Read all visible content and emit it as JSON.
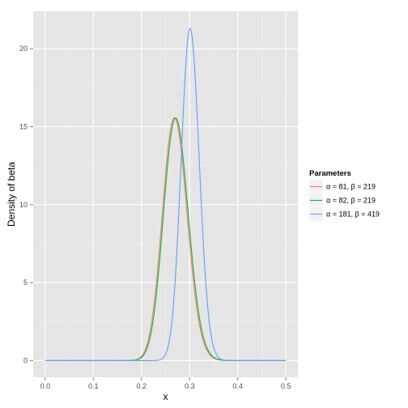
{
  "chart_data": {
    "type": "line",
    "title": "",
    "xlabel": "x",
    "ylabel": "Density of beta",
    "xlim": [
      -0.025,
      0.525
    ],
    "ylim": [
      -1.07,
      22.4
    ],
    "grid": true,
    "x_ticks": [
      {
        "value": 0.0,
        "label": "0.0"
      },
      {
        "value": 0.1,
        "label": "0.1"
      },
      {
        "value": 0.2,
        "label": "0.2"
      },
      {
        "value": 0.3,
        "label": "0.3"
      },
      {
        "value": 0.4,
        "label": "0.4"
      },
      {
        "value": 0.5,
        "label": "0.5"
      }
    ],
    "y_ticks": [
      {
        "value": 0,
        "label": "0"
      },
      {
        "value": 5,
        "label": "5"
      },
      {
        "value": 10,
        "label": "10"
      },
      {
        "value": 15,
        "label": "15"
      },
      {
        "value": 20,
        "label": "20"
      }
    ],
    "legend": {
      "title": "Parameters",
      "placement": "right"
    },
    "x_range": [
      0,
      0.5
    ],
    "series": [
      {
        "name": "α = 81, β = 219",
        "alpha": 81,
        "beta": 219,
        "color": "#F8766D"
      },
      {
        "name": "α = 82, β = 219",
        "alpha": 82,
        "beta": 219,
        "color": "#00BA38"
      },
      {
        "name": "α = 181, β = 419",
        "alpha": 181,
        "beta": 419,
        "color": "#619CFF"
      }
    ]
  }
}
